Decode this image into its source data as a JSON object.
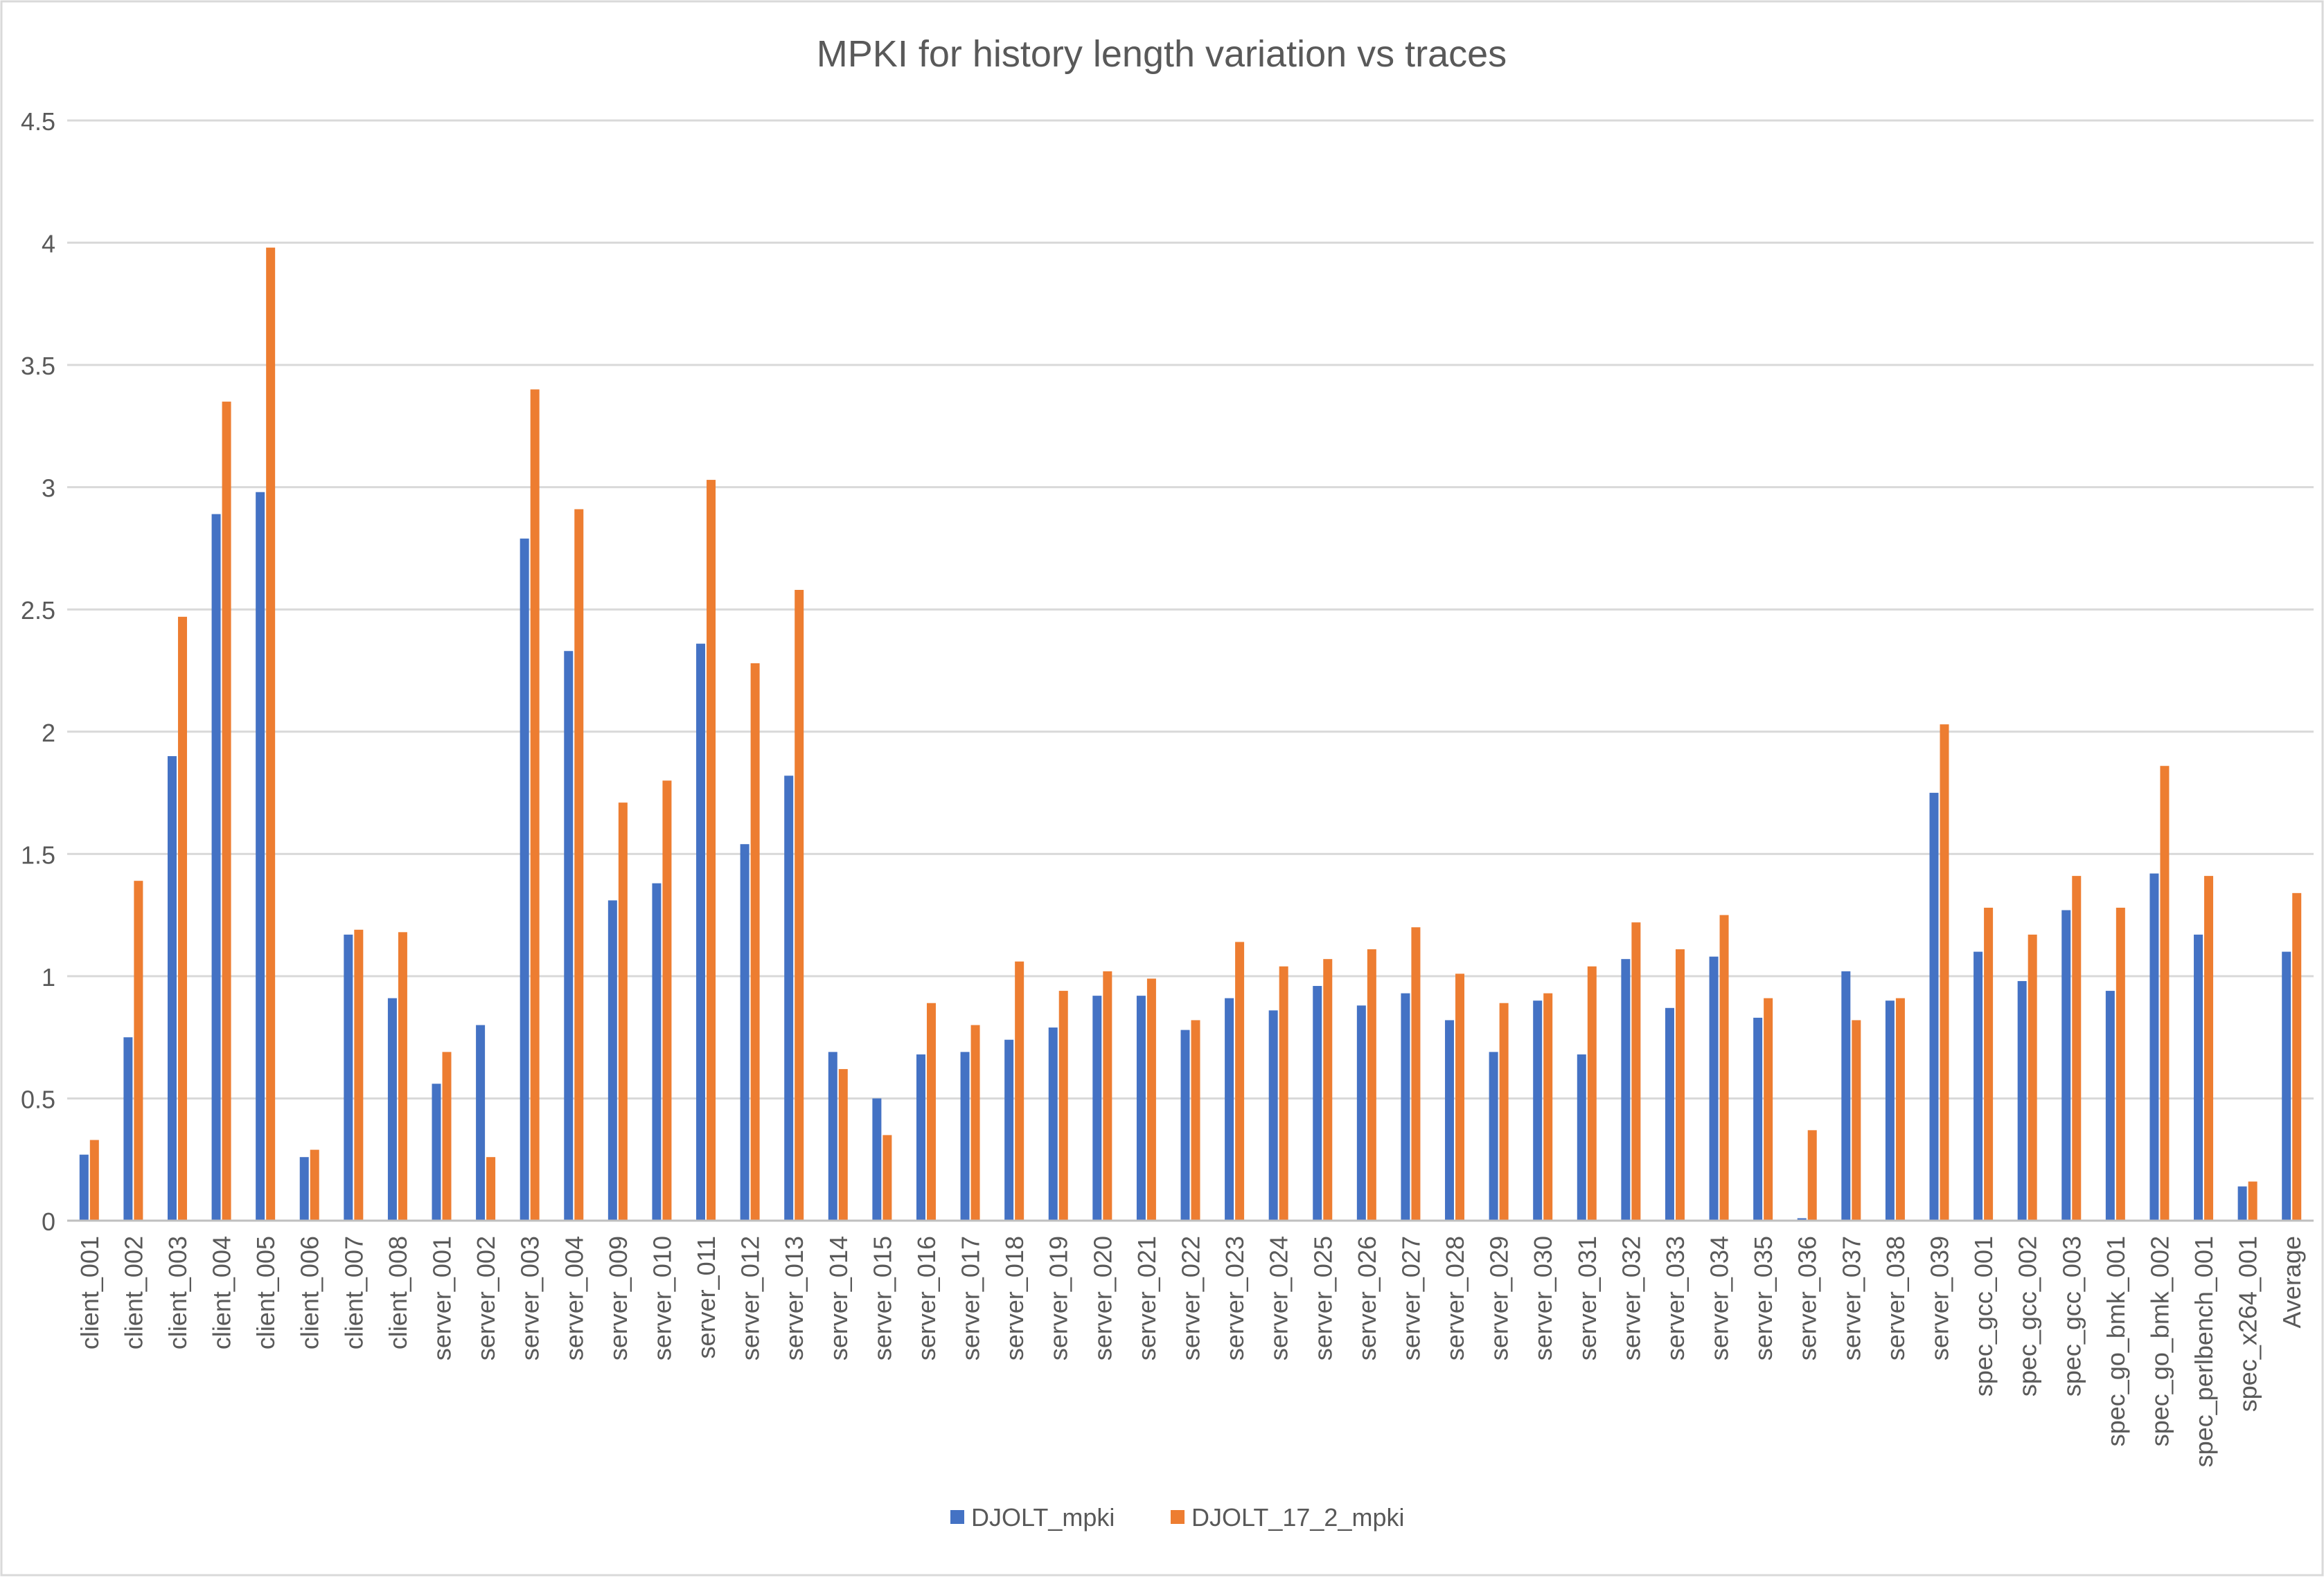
{
  "chart_data": {
    "type": "bar",
    "title": "MPKI for history length variation vs traces",
    "xlabel": "",
    "ylabel": "",
    "ylim": [
      0,
      4.5
    ],
    "yticks": [
      "0",
      "0.5",
      "1",
      "1.5",
      "2",
      "2.5",
      "3",
      "3.5",
      "4",
      "4.5"
    ],
    "grid": true,
    "legend_position": "bottom-center",
    "colors": {
      "DJOLT_mpki": "#4472C4",
      "DJOLT_17_2_mpki": "#ED7D31"
    },
    "categories": [
      "client_001",
      "client_002",
      "client_003",
      "client_004",
      "client_005",
      "client_006",
      "client_007",
      "client_008",
      "server_001",
      "server_002",
      "server_003",
      "server_004",
      "server_009",
      "server_010",
      "server_011",
      "server_012",
      "server_013",
      "server_014",
      "server_015",
      "server_016",
      "server_017",
      "server_018",
      "server_019",
      "server_020",
      "server_021",
      "server_022",
      "server_023",
      "server_024",
      "server_025",
      "server_026",
      "server_027",
      "server_028",
      "server_029",
      "server_030",
      "server_031",
      "server_032",
      "server_033",
      "server_034",
      "server_035",
      "server_036",
      "server_037",
      "server_038",
      "server_039",
      "spec_gcc_001",
      "spec_gcc_002",
      "spec_gcc_003",
      "spec_go_bmk_001",
      "spec_go_bmk_002",
      "spec_perlbench_001",
      "spec_x264_001",
      "Average"
    ],
    "series": [
      {
        "name": "DJOLT_mpki",
        "values": [
          0.27,
          0.75,
          1.9,
          2.89,
          2.98,
          0.26,
          1.17,
          0.91,
          0.56,
          0.8,
          2.79,
          2.33,
          1.31,
          1.38,
          2.36,
          1.54,
          1.82,
          0.69,
          0.5,
          0.68,
          0.69,
          0.74,
          0.79,
          0.92,
          0.92,
          0.78,
          0.91,
          0.86,
          0.96,
          0.88,
          0.93,
          0.82,
          0.69,
          0.9,
          0.68,
          1.07,
          0.87,
          1.08,
          0.83,
          0.01,
          1.02,
          0.9,
          1.75,
          1.1,
          0.98,
          1.27,
          0.94,
          1.42,
          1.17,
          0.14,
          1.1
        ]
      },
      {
        "name": "DJOLT_17_2_mpki",
        "values": [
          0.33,
          1.39,
          2.47,
          3.35,
          3.98,
          0.29,
          1.19,
          1.18,
          0.69,
          0.26,
          3.4,
          2.91,
          1.71,
          1.8,
          3.03,
          2.28,
          2.58,
          0.62,
          0.35,
          0.89,
          0.8,
          1.06,
          0.94,
          1.02,
          0.99,
          0.82,
          1.14,
          1.04,
          1.07,
          1.11,
          1.2,
          1.01,
          0.89,
          0.93,
          1.04,
          1.22,
          1.11,
          1.25,
          0.91,
          0.37,
          0.82,
          0.91,
          2.03,
          1.28,
          1.17,
          1.41,
          1.28,
          1.86,
          1.41,
          0.16,
          1.34
        ]
      }
    ]
  }
}
